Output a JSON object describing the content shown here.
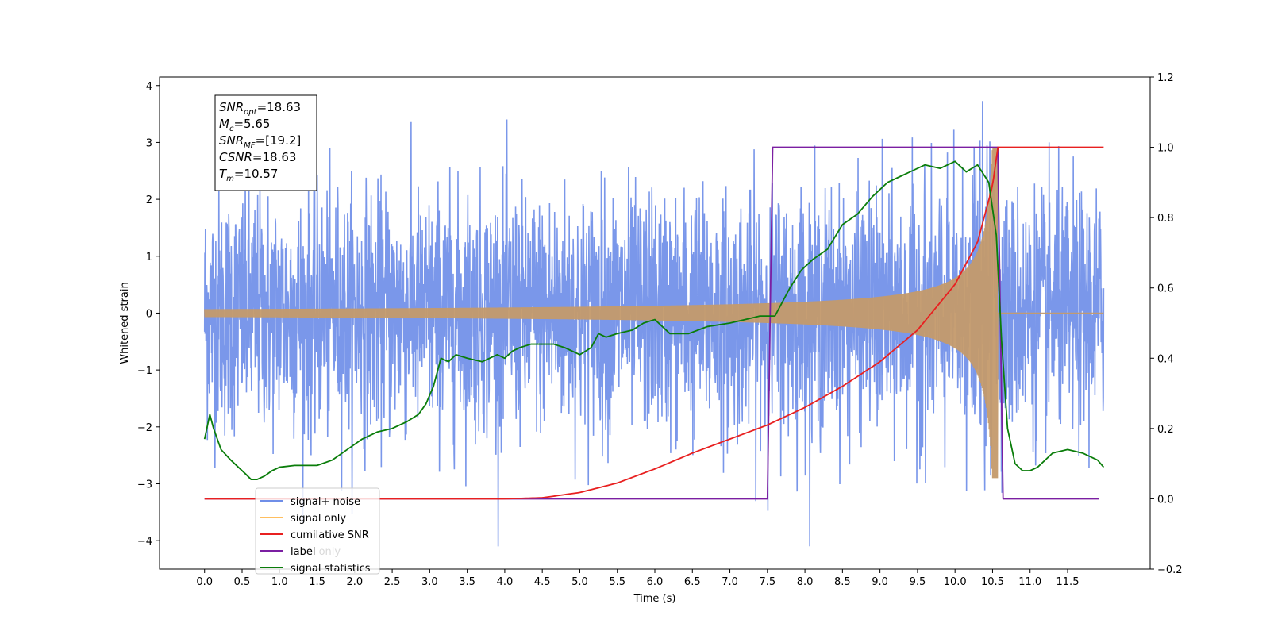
{
  "chart_data": {
    "type": "line",
    "xlabel": "Time (s)",
    "ylabel": "Whitened strain",
    "xlim": [
      -0.6,
      12.6
    ],
    "ylim": [
      -4.5,
      4.15
    ],
    "y2lim": [
      -0.2,
      1.2
    ],
    "x_ticks": [
      0.0,
      0.5,
      1.0,
      1.5,
      2.0,
      2.5,
      3.0,
      3.5,
      4.0,
      4.5,
      5.0,
      5.5,
      6.0,
      6.5,
      7.0,
      7.5,
      8.0,
      8.5,
      9.0,
      9.5,
      10.0,
      10.5,
      11.0,
      11.5
    ],
    "x_tick_labels": [
      "0.0",
      "0.5",
      "1.0",
      "1.5",
      "2.0",
      "2.5",
      "3.0",
      "3.5",
      "4.0",
      "4.5",
      "5.0",
      "5.5",
      "6.0",
      "6.5",
      "7.0",
      "7.5",
      "8.0",
      "8.5",
      "9.0",
      "9.5",
      "10.0",
      "10.5",
      "11.0",
      "11.5"
    ],
    "y_ticks": [
      -4,
      -3,
      -2,
      -1,
      0,
      1,
      2,
      3,
      4
    ],
    "y_tick_labels": [
      "−4",
      "−3",
      "−2",
      "−1",
      "0",
      "1",
      "2",
      "3",
      "4"
    ],
    "y2_ticks": [
      -0.2,
      0.0,
      0.2,
      0.4,
      0.6,
      0.8,
      1.0,
      1.2
    ],
    "y2_tick_labels": [
      "−0.2",
      "0.0",
      "0.2",
      "0.4",
      "0.6",
      "0.8",
      "1.0",
      "1.2"
    ],
    "legend_position": "lower-left",
    "annotation": {
      "lines": [
        {
          "base": "SNR",
          "sub": "opt",
          "rest": "=18.63"
        },
        {
          "base": "M",
          "sub": "c",
          "rest": "=5.65"
        },
        {
          "base": "SNR",
          "sub": "MF",
          "rest": "=[19.2]"
        },
        {
          "base": "CSNR",
          "sub": "",
          "rest": "=18.63"
        },
        {
          "base": "T",
          "sub": "m",
          "rest": "=10.57"
        }
      ]
    },
    "series": [
      {
        "name": "signal+ noise",
        "color": "#6f8ee8",
        "axis": "left",
        "kind": "noise",
        "x_range": [
          0.0,
          11.98
        ],
        "y_range": [
          -4.1,
          3.75
        ]
      },
      {
        "name": "signal only",
        "color": "#ffbf60",
        "axis": "left",
        "kind": "chirp",
        "merger_time": 10.57,
        "max_amplitude": 2.9
      },
      {
        "name": "cumilative SNR",
        "color": "#e82020",
        "axis": "right",
        "x": [
          0.0,
          4.0,
          4.5,
          5.0,
          5.5,
          6.0,
          6.5,
          7.0,
          7.5,
          8.0,
          8.5,
          9.0,
          9.5,
          10.0,
          10.3,
          10.5,
          10.57,
          11.98
        ],
        "values": [
          0.0,
          0.0,
          0.003,
          0.018,
          0.045,
          0.085,
          0.13,
          0.17,
          0.21,
          0.26,
          0.32,
          0.39,
          0.48,
          0.61,
          0.73,
          0.89,
          1.0,
          1.0
        ]
      },
      {
        "name": "label",
        "color": "#7b1fa2",
        "axis": "right",
        "x": [
          0.0,
          7.5,
          7.57,
          10.57,
          10.64,
          11.92
        ],
        "values": [
          0.0,
          0.0,
          1.0,
          1.0,
          0.0,
          0.0
        ]
      },
      {
        "name": "label only",
        "color": "#e0e0e0",
        "axis": "right",
        "hidden_behind_legend": true,
        "x": [],
        "values": []
      },
      {
        "name": "signal statistics",
        "color": "#0a7d0a",
        "axis": "right",
        "x": [
          0.0,
          0.07,
          0.12,
          0.22,
          0.35,
          0.45,
          0.55,
          0.62,
          0.7,
          0.8,
          0.9,
          1.0,
          1.2,
          1.5,
          1.7,
          1.9,
          2.1,
          2.3,
          2.5,
          2.7,
          2.85,
          2.95,
          3.05,
          3.15,
          3.25,
          3.35,
          3.5,
          3.7,
          3.9,
          4.0,
          4.1,
          4.2,
          4.35,
          4.5,
          4.65,
          4.8,
          5.0,
          5.15,
          5.25,
          5.35,
          5.5,
          5.7,
          5.85,
          6.0,
          6.2,
          6.45,
          6.7,
          7.0,
          7.2,
          7.4,
          7.6,
          7.8,
          7.95,
          8.1,
          8.3,
          8.5,
          8.7,
          8.9,
          9.1,
          9.3,
          9.6,
          9.8,
          10.0,
          10.15,
          10.3,
          10.45,
          10.55,
          10.62,
          10.7,
          10.8,
          10.9,
          11.0,
          11.1,
          11.3,
          11.5,
          11.7,
          11.9,
          11.98
        ],
        "values": [
          0.17,
          0.24,
          0.2,
          0.14,
          0.11,
          0.09,
          0.07,
          0.055,
          0.055,
          0.065,
          0.08,
          0.09,
          0.095,
          0.095,
          0.11,
          0.14,
          0.17,
          0.19,
          0.2,
          0.22,
          0.24,
          0.27,
          0.32,
          0.4,
          0.39,
          0.41,
          0.4,
          0.39,
          0.41,
          0.4,
          0.42,
          0.43,
          0.44,
          0.44,
          0.44,
          0.43,
          0.41,
          0.43,
          0.47,
          0.46,
          0.47,
          0.48,
          0.5,
          0.51,
          0.47,
          0.47,
          0.49,
          0.5,
          0.51,
          0.52,
          0.52,
          0.6,
          0.65,
          0.68,
          0.71,
          0.78,
          0.81,
          0.86,
          0.9,
          0.92,
          0.95,
          0.94,
          0.96,
          0.93,
          0.95,
          0.9,
          0.75,
          0.45,
          0.2,
          0.1,
          0.08,
          0.08,
          0.09,
          0.13,
          0.14,
          0.13,
          0.11,
          0.09
        ]
      }
    ]
  }
}
